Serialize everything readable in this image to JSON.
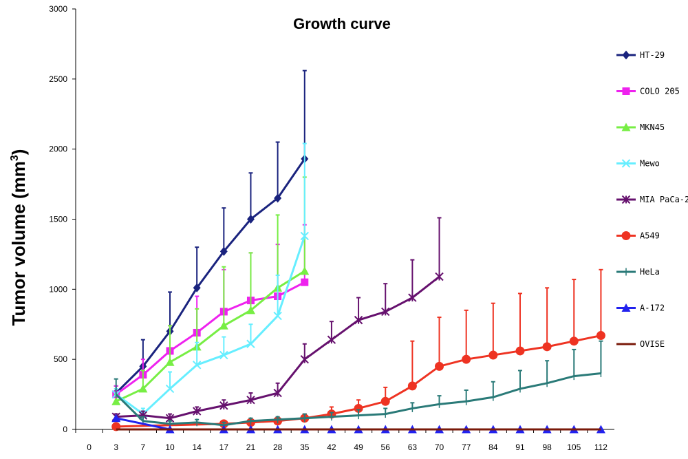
{
  "chart_data": {
    "type": "line",
    "title": "Growth curve",
    "xlabel": "",
    "ylabel": "Tumor volume (mm",
    "ylabel_sup": "3",
    "ylabel_close": ")",
    "ylim": [
      0,
      3000
    ],
    "yticks": [
      0,
      500,
      1000,
      1500,
      2000,
      2500,
      3000
    ],
    "categories": [
      "0",
      "3",
      "7",
      "10",
      "14",
      "17",
      "21",
      "28",
      "35",
      "42",
      "49",
      "56",
      "63",
      "70",
      "77",
      "84",
      "91",
      "98",
      "105",
      "112"
    ],
    "grid": false,
    "legend_position": "right",
    "series": [
      {
        "name": "HT-29",
        "color": "#1a237e",
        "marker": "diamond",
        "x": [
          "3",
          "7",
          "10",
          "14",
          "17",
          "21",
          "28",
          "35"
        ],
        "values": [
          260,
          450,
          700,
          1010,
          1270,
          1500,
          1650,
          1930
        ],
        "err": [
          50,
          190,
          280,
          290,
          310,
          330,
          400,
          630
        ]
      },
      {
        "name": "COLO 205",
        "color": "#ee22ee",
        "marker": "square",
        "x": [
          "3",
          "7",
          "10",
          "14",
          "17",
          "21",
          "28",
          "35"
        ],
        "values": [
          250,
          390,
          560,
          690,
          840,
          920,
          950,
          1050
        ],
        "err": [
          60,
          110,
          180,
          260,
          300,
          340,
          370,
          410
        ]
      },
      {
        "name": "MKN45",
        "color": "#77ee44",
        "marker": "triangle",
        "x": [
          "3",
          "7",
          "10",
          "14",
          "17",
          "21",
          "28",
          "35"
        ],
        "values": [
          200,
          290,
          480,
          590,
          740,
          850,
          1010,
          1130
        ],
        "err": [
          50,
          130,
          260,
          270,
          420,
          410,
          520,
          670
        ]
      },
      {
        "name": "Mewo",
        "color": "#66eeff",
        "marker": "x",
        "x": [
          "3",
          "7",
          "10",
          "14",
          "17",
          "21",
          "28",
          "35"
        ],
        "values": [
          250,
          110,
          290,
          460,
          530,
          610,
          810,
          1380
        ],
        "err": [
          40,
          40,
          120,
          160,
          130,
          140,
          290,
          660
        ]
      },
      {
        "name": "MIA PaCa-2",
        "color": "#66116e",
        "marker": "star",
        "x": [
          "3",
          "7",
          "10",
          "14",
          "17",
          "21",
          "28",
          "35",
          "42",
          "49",
          "56",
          "63",
          "70"
        ],
        "values": [
          90,
          100,
          80,
          130,
          170,
          210,
          260,
          500,
          640,
          780,
          840,
          940,
          1090
        ],
        "err": [
          20,
          30,
          30,
          30,
          40,
          50,
          70,
          110,
          130,
          160,
          200,
          270,
          420
        ]
      },
      {
        "name": "A549",
        "color": "#ee3322",
        "marker": "circle",
        "x": [
          "3",
          "17",
          "21",
          "28",
          "35",
          "42",
          "49",
          "56",
          "63",
          "70",
          "77",
          "84",
          "91",
          "98",
          "105",
          "112"
        ],
        "values": [
          20,
          40,
          50,
          60,
          80,
          110,
          150,
          200,
          310,
          450,
          500,
          530,
          560,
          590,
          630,
          670
        ],
        "err": [
          10,
          20,
          20,
          20,
          30,
          50,
          60,
          100,
          320,
          350,
          350,
          370,
          410,
          420,
          440,
          470
        ]
      },
      {
        "name": "HeLa",
        "color": "#2a7a78",
        "marker": "plus",
        "x": [
          "3",
          "7",
          "10",
          "14",
          "17",
          "21",
          "28",
          "35",
          "42",
          "49",
          "56",
          "63",
          "70",
          "77",
          "84",
          "91",
          "98",
          "105",
          "112"
        ],
        "values": [
          250,
          60,
          40,
          50,
          30,
          60,
          70,
          80,
          90,
          100,
          110,
          150,
          180,
          200,
          230,
          290,
          330,
          380,
          400
        ],
        "err": [
          110,
          30,
          20,
          20,
          20,
          20,
          20,
          30,
          30,
          40,
          40,
          40,
          60,
          80,
          110,
          130,
          160,
          190,
          230
        ]
      },
      {
        "name": "A-172",
        "color": "#2222ee",
        "marker": "triangle",
        "x": [
          "3",
          "10",
          "17",
          "21",
          "28",
          "35",
          "42",
          "49",
          "56",
          "63",
          "70",
          "77",
          "84",
          "91",
          "98",
          "105",
          "112"
        ],
        "values": [
          80,
          0,
          0,
          0,
          0,
          0,
          0,
          0,
          0,
          0,
          0,
          0,
          0,
          0,
          0,
          0,
          0
        ],
        "err": [
          0,
          0,
          0,
          0,
          0,
          0,
          0,
          0,
          0,
          0,
          0,
          0,
          0,
          0,
          0,
          0,
          0
        ]
      },
      {
        "name": "OVISE",
        "color": "#7a1a0a",
        "marker": "line",
        "x": [
          "3",
          "7",
          "10",
          "14",
          "17",
          "21",
          "28",
          "35",
          "42",
          "49",
          "56",
          "63",
          "70",
          "77",
          "84",
          "91",
          "98",
          "105",
          "112"
        ],
        "values": [
          0,
          0,
          0,
          0,
          0,
          0,
          0,
          0,
          0,
          0,
          0,
          0,
          0,
          0,
          0,
          0,
          0,
          0,
          0
        ],
        "err": [
          0,
          0,
          0,
          0,
          0,
          0,
          0,
          0,
          0,
          0,
          0,
          0,
          0,
          0,
          0,
          0,
          0,
          0,
          0
        ]
      }
    ]
  }
}
